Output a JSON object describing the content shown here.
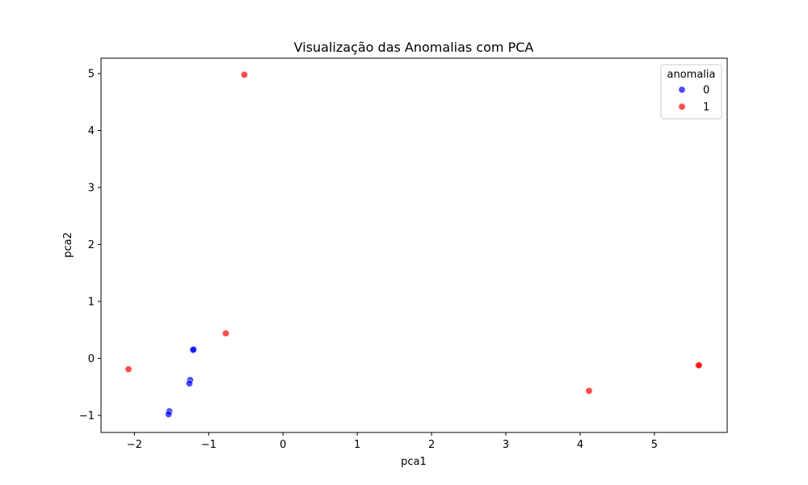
{
  "chart_data": {
    "type": "scatter",
    "title": "Visualização das Anomalias com PCA",
    "xlabel": "pca1",
    "ylabel": "pca2",
    "xlim": [
      -2.45,
      5.98
    ],
    "ylim": [
      -1.3,
      5.27
    ],
    "xticks": [
      -2,
      -1,
      0,
      1,
      2,
      3,
      4,
      5
    ],
    "yticks": [
      -1,
      0,
      1,
      2,
      3,
      4,
      5
    ],
    "xtick_labels": [
      "−2",
      "−1",
      "0",
      "1",
      "2",
      "3",
      "4",
      "5"
    ],
    "ytick_labels": [
      "−1",
      "0",
      "1",
      "2",
      "3",
      "4",
      "5"
    ],
    "grid": false,
    "legend": {
      "title": "anomalia",
      "placement": "top-right"
    },
    "series": [
      {
        "name": "0",
        "color": "#0000ff",
        "points": [
          {
            "x": -1.2,
            "y": 0.16
          },
          {
            "x": -1.21,
            "y": 0.15
          },
          {
            "x": -1.25,
            "y": -0.38
          },
          {
            "x": -1.26,
            "y": -0.44
          },
          {
            "x": -1.53,
            "y": -0.93
          },
          {
            "x": -1.54,
            "y": -0.98
          }
        ]
      },
      {
        "name": "1",
        "color": "#ff0000",
        "points": [
          {
            "x": -0.52,
            "y": 4.98
          },
          {
            "x": -0.77,
            "y": 0.44
          },
          {
            "x": -2.08,
            "y": -0.19
          },
          {
            "x": 4.12,
            "y": -0.57
          },
          {
            "x": 5.59,
            "y": -0.12
          },
          {
            "x": 5.6,
            "y": -0.12
          }
        ]
      }
    ]
  }
}
